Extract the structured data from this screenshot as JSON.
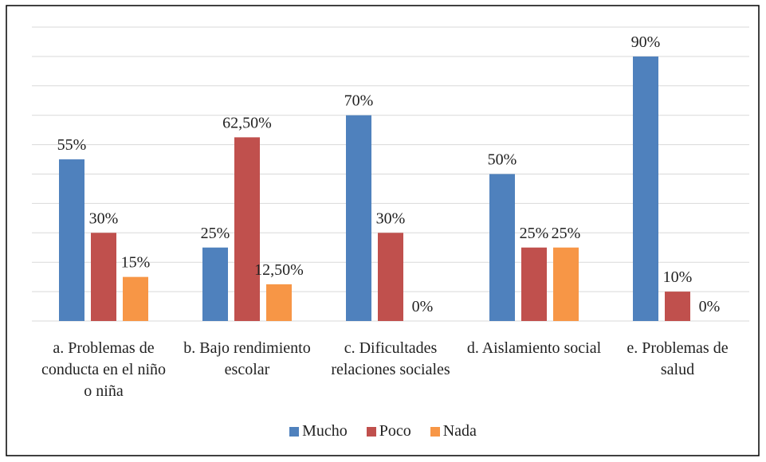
{
  "chart_data": {
    "type": "bar",
    "categories": [
      "a. Problemas de conducta en el niño o niña",
      "b. Bajo rendimiento escolar",
      "c. Dificultades relaciones sociales",
      "d. Aislamiento social",
      "e. Problemas de salud"
    ],
    "series": [
      {
        "name": "Mucho",
        "color": "#4f81bd",
        "values": [
          55,
          25,
          70,
          50,
          90
        ],
        "value_labels": [
          "55%",
          "25%",
          "70%",
          "50%",
          "90%"
        ]
      },
      {
        "name": "Poco",
        "color": "#c0504d",
        "values": [
          30,
          62.5,
          30,
          25,
          10
        ],
        "value_labels": [
          "30%",
          "62,50%",
          "30%",
          "25%",
          "10%"
        ]
      },
      {
        "name": "Nada",
        "color": "#f79646",
        "values": [
          15,
          12.5,
          0,
          25,
          0
        ],
        "value_labels": [
          "15%",
          "12,50%",
          "0%",
          "25%",
          "0%"
        ]
      }
    ],
    "ylim": [
      0,
      100
    ],
    "yticks": [
      0,
      10,
      20,
      30,
      40,
      50,
      60,
      70,
      80,
      90,
      100
    ],
    "grid": true
  }
}
